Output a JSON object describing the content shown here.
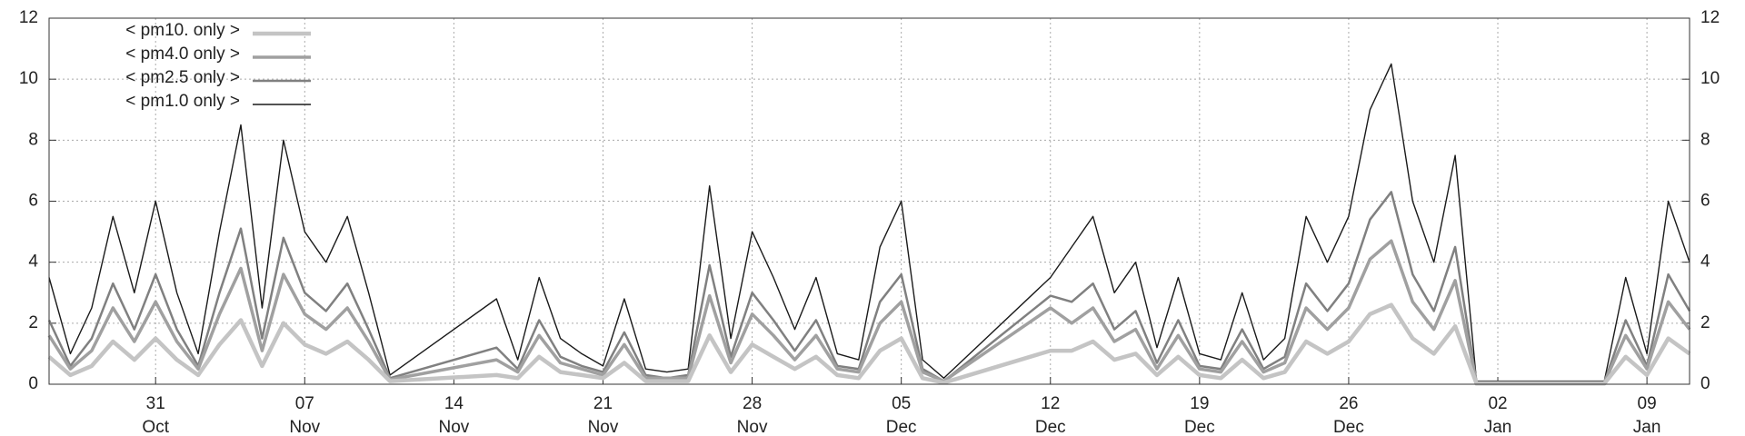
{
  "chart_data": {
    "type": "line",
    "x": [
      "26 Oct",
      "27 Oct",
      "28 Oct",
      "29 Oct",
      "30 Oct",
      "31 Oct",
      "01 Nov",
      "02 Nov",
      "03 Nov",
      "04 Nov",
      "05 Nov",
      "06 Nov",
      "07 Nov",
      "08 Nov",
      "09 Nov",
      "10 Nov",
      "11 Nov",
      "16 Nov",
      "17 Nov",
      "18 Nov",
      "19 Nov",
      "20 Nov",
      "21 Nov",
      "22 Nov",
      "23 Nov",
      "24 Nov",
      "25 Nov",
      "26 Nov",
      "27 Nov",
      "28 Nov",
      "29 Nov",
      "30 Nov",
      "01 Dec",
      "02 Dec",
      "03 Dec",
      "04 Dec",
      "05 Dec",
      "06 Dec",
      "07 Dec",
      "12 Dec",
      "13 Dec",
      "14 Dec",
      "15 Dec",
      "16 Dec",
      "17 Dec",
      "18 Dec",
      "19 Dec",
      "20 Dec",
      "21 Dec",
      "22 Dec",
      "23 Dec",
      "24 Dec",
      "25 Dec",
      "26 Dec",
      "27 Dec",
      "28 Dec",
      "29 Dec",
      "30 Dec",
      "31 Dec",
      "01 Jan",
      "07 Jan",
      "08 Jan",
      "09 Jan",
      "10 Jan",
      "11 Jan"
    ],
    "series": [
      {
        "name": "< pm1.0 only >",
        "color": "#1a1a1a",
        "width": 1.4,
        "values": [
          3.5,
          1.0,
          2.5,
          5.5,
          3.0,
          6.0,
          3.0,
          1.0,
          5.0,
          8.5,
          2.5,
          8.0,
          5.0,
          4.0,
          5.5,
          3.0,
          0.3,
          2.8,
          0.8,
          3.5,
          1.5,
          1.0,
          0.6,
          2.8,
          0.5,
          0.4,
          0.5,
          6.5,
          1.5,
          5.0,
          3.5,
          1.8,
          3.5,
          1.0,
          0.8,
          4.5,
          6.0,
          0.8,
          0.2,
          3.5,
          4.5,
          5.5,
          3.0,
          4.0,
          1.2,
          3.5,
          1.0,
          0.8,
          3.0,
          0.8,
          1.5,
          5.5,
          4.0,
          5.5,
          9.0,
          10.5,
          6.0,
          4.0,
          7.5,
          0.1,
          0.1,
          3.5,
          1.0,
          6.0,
          4.0
        ]
      },
      {
        "name": "< pm2.5 only >",
        "color": "#808080",
        "width": 2.5,
        "values": [
          2.1,
          0.6,
          1.5,
          3.3,
          1.8,
          3.6,
          1.8,
          0.6,
          3.0,
          5.1,
          1.5,
          4.8,
          3.0,
          2.4,
          3.3,
          1.8,
          0.2,
          1.2,
          0.5,
          2.1,
          0.9,
          0.6,
          0.4,
          1.7,
          0.3,
          0.2,
          0.3,
          3.9,
          0.9,
          3.0,
          2.1,
          1.1,
          2.1,
          0.6,
          0.5,
          2.7,
          3.6,
          0.5,
          0.1,
          2.9,
          2.7,
          3.3,
          1.8,
          2.4,
          0.7,
          2.1,
          0.6,
          0.5,
          1.8,
          0.5,
          0.9,
          3.3,
          2.4,
          3.3,
          5.4,
          6.3,
          3.6,
          2.4,
          4.5,
          0.05,
          0.05,
          2.1,
          0.6,
          3.6,
          2.4
        ]
      },
      {
        "name": "< pm4.0 only >",
        "color": "#a0a0a0",
        "width": 3.5,
        "values": [
          1.6,
          0.5,
          1.1,
          2.5,
          1.4,
          2.7,
          1.4,
          0.5,
          2.3,
          3.8,
          1.1,
          3.6,
          2.3,
          1.8,
          2.5,
          1.4,
          0.15,
          0.8,
          0.4,
          1.6,
          0.7,
          0.5,
          0.3,
          1.3,
          0.2,
          0.2,
          0.2,
          2.9,
          0.7,
          2.3,
          1.6,
          0.8,
          1.6,
          0.5,
          0.4,
          2.0,
          2.7,
          0.4,
          0.1,
          2.5,
          2.0,
          2.5,
          1.4,
          1.8,
          0.5,
          1.6,
          0.5,
          0.4,
          1.4,
          0.4,
          0.7,
          2.5,
          1.8,
          2.5,
          4.1,
          4.7,
          2.7,
          1.8,
          3.4,
          0.05,
          0.05,
          1.6,
          0.5,
          2.7,
          1.8
        ]
      },
      {
        "name": "< pm10. only >",
        "color": "#c4c4c4",
        "width": 4.5,
        "values": [
          0.9,
          0.3,
          0.6,
          1.4,
          0.8,
          1.5,
          0.8,
          0.3,
          1.3,
          2.1,
          0.6,
          2.0,
          1.3,
          1.0,
          1.4,
          0.8,
          0.1,
          0.3,
          0.2,
          0.9,
          0.4,
          0.3,
          0.2,
          0.7,
          0.1,
          0.1,
          0.1,
          1.6,
          0.4,
          1.3,
          0.9,
          0.5,
          0.9,
          0.3,
          0.2,
          1.1,
          1.5,
          0.2,
          0.05,
          1.1,
          1.1,
          1.4,
          0.8,
          1.0,
          0.3,
          0.9,
          0.3,
          0.2,
          0.8,
          0.2,
          0.4,
          1.4,
          1.0,
          1.4,
          2.3,
          2.6,
          1.5,
          1.0,
          1.9,
          0.02,
          0.02,
          0.9,
          0.3,
          1.5,
          1.0
        ]
      }
    ],
    "xlim": [
      "26 Oct",
      "11 Jan"
    ],
    "xticks": [
      "31 Oct",
      "07 Nov",
      "14 Nov",
      "21 Nov",
      "28 Nov",
      "05 Dec",
      "12 Dec",
      "19 Dec",
      "26 Dec",
      "02 Jan",
      "09 Jan"
    ],
    "ylim": [
      0,
      12
    ],
    "yticks": [
      0,
      2,
      4,
      6,
      8,
      10,
      12
    ],
    "grid": true,
    "legend": "top-left"
  }
}
